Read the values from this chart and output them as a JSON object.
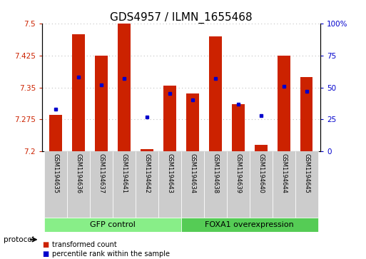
{
  "title": "GDS4957 / ILMN_1655468",
  "samples": [
    "GSM1194635",
    "GSM1194636",
    "GSM1194637",
    "GSM1194641",
    "GSM1194642",
    "GSM1194643",
    "GSM1194634",
    "GSM1194638",
    "GSM1194639",
    "GSM1194640",
    "GSM1194644",
    "GSM1194645"
  ],
  "transformed_counts": [
    7.285,
    7.475,
    7.425,
    7.505,
    7.205,
    7.355,
    7.335,
    7.47,
    7.31,
    7.215,
    7.425,
    7.375
  ],
  "percentile_ranks": [
    33,
    58,
    52,
    57,
    27,
    45,
    40,
    57,
    37,
    28,
    51,
    47
  ],
  "ylim_left": [
    7.2,
    7.5
  ],
  "ylim_right": [
    0,
    100
  ],
  "yticks_left": [
    7.2,
    7.275,
    7.35,
    7.425,
    7.5
  ],
  "yticks_right": [
    0,
    25,
    50,
    75,
    100
  ],
  "ytick_labels_left": [
    "7.2",
    "7.275",
    "7.35",
    "7.425",
    "7.5"
  ],
  "ytick_labels_right": [
    "0",
    "25",
    "50",
    "75",
    "100%"
  ],
  "bar_color": "#cc2200",
  "dot_color": "#0000cc",
  "base_value": 7.2,
  "groups": [
    {
      "label": "GFP control",
      "start": 0,
      "end": 6,
      "color": "#88ee88"
    },
    {
      "label": "FOXA1 overexpression",
      "start": 6,
      "end": 12,
      "color": "#55cc55"
    }
  ],
  "legend_items": [
    {
      "label": "transformed count",
      "color": "#cc2200"
    },
    {
      "label": "percentile rank within the sample",
      "color": "#0000cc"
    }
  ],
  "bar_width": 0.55,
  "background_color": "#ffffff",
  "title_fontsize": 11,
  "axis_label_color_left": "#cc2200",
  "axis_label_color_right": "#0000cc",
  "label_box_color": "#cccccc",
  "n_gfp": 6,
  "n_total": 12
}
